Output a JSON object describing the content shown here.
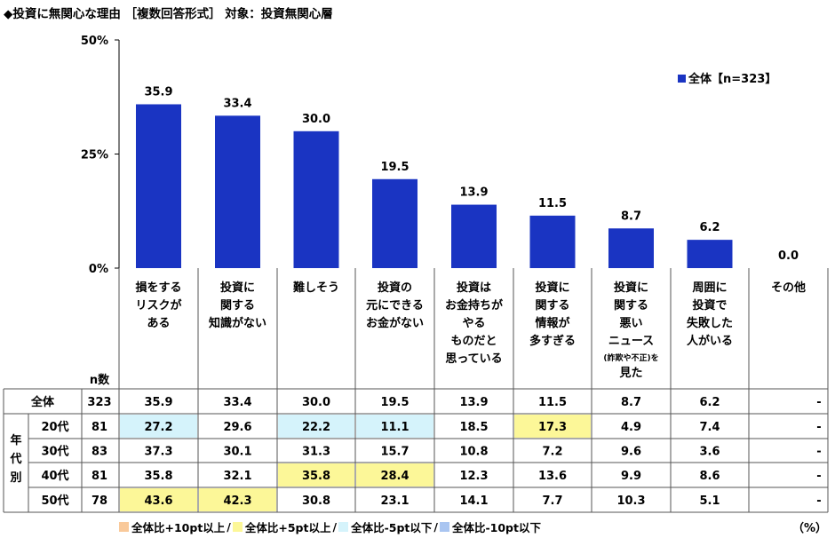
{
  "title": "◆投資に無関心な理由 ［複数回答形式］ 対象：投資無関心層",
  "unit_label": "（%）",
  "n_label": "n数",
  "age_group_label": "年代別",
  "colors": {
    "bar": "#1a34c2",
    "plus10": "#f9c99a",
    "plus5": "#fcf798",
    "minus5": "#d5f3fb",
    "minus10": "#a9c5f1"
  },
  "highlight_legend": [
    {
      "key": "plus10",
      "label": "全体比+10pt以上"
    },
    {
      "key": "plus5",
      "label": "全体比+5pt以上"
    },
    {
      "key": "minus5",
      "label": "全体比-5pt以下"
    },
    {
      "key": "minus10",
      "label": "全体比-10pt以下"
    }
  ],
  "chart_data": {
    "type": "bar",
    "categories": [
      [
        "損をする",
        "リスクが",
        "ある"
      ],
      [
        "投資に",
        "関する",
        "知識がない"
      ],
      [
        "難しそう"
      ],
      [
        "投資の",
        "元にできる",
        "お金がない"
      ],
      [
        "投資は",
        "お金持ちが",
        "やる",
        "ものだと",
        "思っている"
      ],
      [
        "投資に",
        "関する",
        "情報が",
        "多すぎる"
      ],
      [
        "投資に",
        "関する",
        "悪い",
        "ニュース",
        "(詐欺や不正)を",
        "見た"
      ],
      [
        "周囲に",
        "投資で",
        "失敗した",
        "人がいる"
      ],
      [
        "その他"
      ]
    ],
    "series": [
      {
        "name": "全体【n=323】",
        "values": [
          35.9,
          33.4,
          30.0,
          19.5,
          13.9,
          11.5,
          8.7,
          6.2,
          0.0
        ]
      }
    ],
    "value_labels": [
      "35.9",
      "33.4",
      "30.0",
      "19.5",
      "13.9",
      "11.5",
      "8.7",
      "6.2",
      "0.0"
    ],
    "ylim": [
      0,
      50
    ],
    "yticks": [
      "0%",
      "25%",
      "50%"
    ],
    "legend_position": "top-right",
    "table": {
      "rows": [
        {
          "label": "全体",
          "n": "323",
          "values": [
            "35.9",
            "33.4",
            "30.0",
            "19.5",
            "13.9",
            "11.5",
            "8.7",
            "6.2",
            "-"
          ],
          "highlights": [
            "",
            "",
            "",
            "",
            "",
            "",
            "",
            "",
            ""
          ]
        },
        {
          "label": "20代",
          "n": "81",
          "values": [
            "27.2",
            "29.6",
            "22.2",
            "11.1",
            "18.5",
            "17.3",
            "4.9",
            "7.4",
            "-"
          ],
          "highlights": [
            "minus5",
            "",
            "minus5",
            "minus5",
            "",
            "plus5",
            "",
            "",
            ""
          ]
        },
        {
          "label": "30代",
          "n": "83",
          "values": [
            "37.3",
            "30.1",
            "31.3",
            "15.7",
            "10.8",
            "7.2",
            "9.6",
            "3.6",
            "-"
          ],
          "highlights": [
            "",
            "",
            "",
            "",
            "",
            "",
            "",
            "",
            ""
          ]
        },
        {
          "label": "40代",
          "n": "81",
          "values": [
            "35.8",
            "32.1",
            "35.8",
            "28.4",
            "12.3",
            "13.6",
            "9.9",
            "8.6",
            "-"
          ],
          "highlights": [
            "",
            "",
            "plus5",
            "plus5",
            "",
            "",
            "",
            "",
            ""
          ]
        },
        {
          "label": "50代",
          "n": "78",
          "values": [
            "43.6",
            "42.3",
            "30.8",
            "23.1",
            "14.1",
            "7.7",
            "10.3",
            "5.1",
            "-"
          ],
          "highlights": [
            "plus5",
            "plus5",
            "",
            "",
            "",
            "",
            "",
            "",
            ""
          ]
        }
      ]
    }
  }
}
